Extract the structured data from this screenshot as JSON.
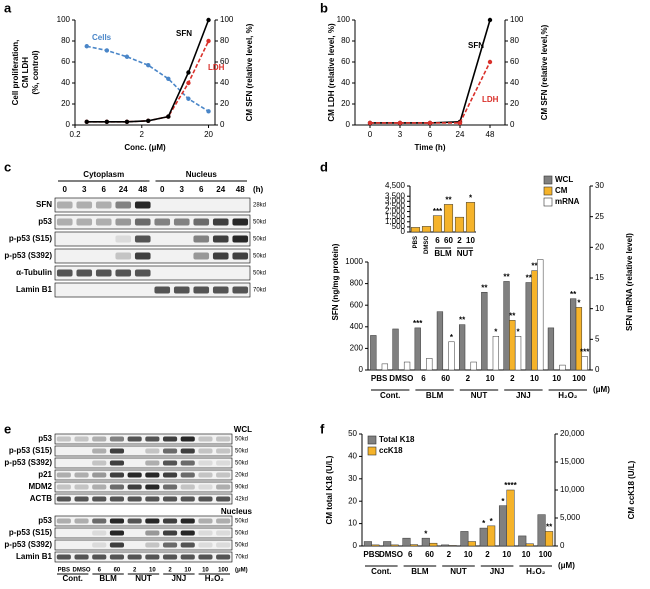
{
  "chart_data": [
    {
      "panel": "a",
      "type": "line",
      "x_label": "Conc. (μM)",
      "y_label": [
        "Cell proliferation,",
        "CM LDH",
        "(%, control)"
      ],
      "y2_label": "CM SFN (relative level, %)",
      "log_x": true,
      "xlim": [
        0.2,
        25
      ],
      "xticks": [
        0.2,
        2,
        20
      ],
      "ylim": [
        0,
        100
      ],
      "yticks": [
        0,
        20,
        40,
        60,
        80,
        100
      ],
      "y2lim": [
        0,
        100
      ],
      "y2ticks": [
        0,
        20,
        40,
        60,
        80,
        100
      ],
      "x": [
        0.3,
        0.6,
        1.2,
        2.5,
        5,
        10,
        20
      ],
      "series": [
        {
          "name": "Cells",
          "color": "#4a86c8",
          "dash": true,
          "values": [
            75,
            71,
            65,
            57,
            44,
            25,
            13
          ]
        },
        {
          "name": "LDH",
          "color": "#d9302a",
          "dash": true,
          "values": [
            3,
            3,
            3,
            4,
            8,
            40,
            80
          ]
        },
        {
          "name": "SFN",
          "color": "#000000",
          "axis": "y2",
          "values": [
            3,
            3,
            3,
            4,
            8,
            50,
            100
          ]
        }
      ]
    },
    {
      "panel": "b",
      "type": "line",
      "x_label": "Time (h)",
      "y_label": "CM LDH (relative level, %)",
      "y2_label": "CM SFN (relative level,%)",
      "categories": [
        0,
        3,
        6,
        24,
        48
      ],
      "ylim": [
        0,
        100
      ],
      "yticks": [
        0,
        20,
        40,
        60,
        80,
        100
      ],
      "y2lim": [
        0,
        100
      ],
      "y2ticks": [
        0,
        20,
        40,
        60,
        80,
        100
      ],
      "series": [
        {
          "name": "SFN",
          "color": "#000000",
          "axis": "y2",
          "values": [
            2,
            2,
            2,
            3,
            100
          ]
        },
        {
          "name": "LDH",
          "color": "#d9302a",
          "dash": true,
          "values": [
            2,
            2,
            2,
            2,
            60
          ]
        }
      ]
    },
    {
      "panel": "d",
      "type": "bar",
      "y_label": "SFN (ng/mg protein)",
      "y2_label": "SFN mRNA (relative level)",
      "unit": "(μM)",
      "categories": [
        "PBS",
        "DMSO",
        "6",
        "60",
        "2",
        "10",
        "2",
        "10",
        "10",
        "100"
      ],
      "groups": [
        "Cont.",
        "BLM",
        "NUT",
        "JNJ",
        "H₂O₂"
      ],
      "ylim": [
        0,
        1000
      ],
      "yticks": [
        0,
        200,
        400,
        600,
        800,
        1000
      ],
      "y2lim": [
        0,
        30
      ],
      "y2ticks": [
        0,
        5,
        10,
        15,
        20,
        25,
        30
      ],
      "series": [
        {
          "name": "WCL",
          "color": "#808080",
          "values": [
            320,
            380,
            390,
            540,
            420,
            720,
            820,
            810,
            390,
            660
          ],
          "significance": [
            null,
            null,
            "***",
            null,
            "**",
            "**",
            "**",
            "**",
            null,
            "**"
          ]
        },
        {
          "name": "CM",
          "color": "#f5b32a",
          "values": [
            null,
            null,
            null,
            null,
            null,
            null,
            460,
            920,
            null,
            580
          ],
          "significance": [
            null,
            null,
            null,
            null,
            null,
            null,
            "**",
            "**",
            null,
            "*"
          ]
        },
        {
          "name": "mRNA",
          "color": "#ffffff",
          "axis": "y2",
          "values": [
            1,
            1.3,
            1.9,
            4.6,
            1.3,
            5.5,
            5.5,
            18,
            0.8,
            2.2
          ],
          "significance": [
            null,
            null,
            null,
            "*",
            null,
            "*",
            "*",
            null,
            null,
            "***"
          ]
        }
      ]
    },
    {
      "type": "bar",
      "categories": [
        "PBS",
        "DMSO",
        "6",
        "60",
        "2",
        "10"
      ],
      "groups": [
        "BLM",
        "NUT"
      ],
      "color": "#f5b32a",
      "ylim": [
        0,
        4500
      ],
      "yticks": [
        0,
        500,
        {
          "value": 1000,
          "label": "1,000"
        },
        {
          "value": 1500,
          "label": "1,500"
        },
        {
          "value": 2000,
          "label": "2,000"
        },
        {
          "value": 2500,
          "label": "2,500"
        },
        {
          "value": 3000,
          "label": "3,000"
        },
        {
          "value": 3500,
          "label": "3,500"
        },
        {
          "value": 4500,
          "label": "4,500"
        }
      ],
      "values": [
        450,
        550,
        1600,
        2700,
        1450,
        2900
      ],
      "significance": [
        null,
        null,
        "***",
        "**",
        null,
        "*"
      ]
    },
    {
      "panel": "f",
      "type": "bar",
      "y_label": "CM total K18 (U/L)",
      "y2_label": "CM ccK18 (U/L)",
      "unit": "(μM)",
      "categories": [
        "PBS",
        "DMSO",
        "6",
        "60",
        "2",
        "10",
        "2",
        "10",
        "10",
        "100"
      ],
      "groups": [
        "Cont.",
        "BLM",
        "NUT",
        "JNJ",
        "H₂O₂"
      ],
      "ylim": [
        0,
        50
      ],
      "yticks": [
        0,
        10,
        20,
        30,
        40,
        50
      ],
      "y2lim": [
        0,
        20000
      ],
      "y2ticks": [
        0,
        {
          "value": 5000,
          "label": "5,000"
        },
        {
          "value": 10000,
          "label": "10,000"
        },
        {
          "value": 15000,
          "label": "15,000"
        },
        {
          "value": 20000,
          "label": "20,000"
        }
      ],
      "series": [
        {
          "name": "Total K18",
          "color": "#808080",
          "values": [
            2,
            2,
            3.5,
            3.5,
            0.5,
            6.5,
            8,
            18,
            4.5,
            14
          ],
          "significance": [
            null,
            null,
            null,
            "*",
            null,
            null,
            "*",
            "*",
            null,
            null
          ]
        },
        {
          "name": "ccK18",
          "color": "#f5b32a",
          "axis": "y2",
          "values": [
            200,
            200,
            250,
            500,
            100,
            800,
            3600,
            10000,
            400,
            2600
          ],
          "significance": [
            null,
            null,
            null,
            null,
            null,
            null,
            "*",
            "****",
            null,
            "**"
          ]
        }
      ]
    }
  ],
  "blots": [
    {
      "panel": "c",
      "headers": [
        "Cytoplasm",
        "Nucleus"
      ],
      "lanes": [
        "0",
        "3",
        "6",
        "24",
        "48",
        "0",
        "3",
        "6",
        "24",
        "48"
      ],
      "unit": "(h)",
      "rows": [
        {
          "label": "SFN",
          "size": "28kd"
        },
        {
          "label": "p53",
          "size": "50kd"
        },
        {
          "label": "p-p53 (S15)",
          "size": "50kd"
        },
        {
          "label": "p-p53 (S392)",
          "size": "50kd"
        },
        {
          "label": "α-Tubulin",
          "size": "50kd"
        },
        {
          "label": "Lamin B1",
          "size": "70kd"
        }
      ]
    },
    {
      "panel": "e",
      "lanes": [
        "PBS",
        "DMSO",
        "6",
        "60",
        "2",
        "10",
        "2",
        "10",
        "10",
        "100"
      ],
      "groups": [
        "Cont.",
        "BLM",
        "NUT",
        "JNJ",
        "H₂O₂"
      ],
      "unit": "(μM)",
      "sections": [
        {
          "title": "WCL",
          "rows": [
            {
              "label": "p53",
              "size": "50kd"
            },
            {
              "label": "p-p53 (S15)",
              "size": "50kd"
            },
            {
              "label": "p-p53 (S392)",
              "size": "50kd"
            },
            {
              "label": "p21",
              "size": "20kd"
            },
            {
              "label": "MDM2",
              "size": "90kd"
            },
            {
              "label": "ACTB",
              "size": "42kd"
            }
          ]
        },
        {
          "title": "Nucleus",
          "rows": [
            {
              "label": "p53",
              "size": "50kd"
            },
            {
              "label": "p-p53 (S15)",
              "size": "50kd"
            },
            {
              "label": "p-p53 (S392)",
              "size": "50kd"
            },
            {
              "label": "Lamin B1",
              "size": "70kd"
            }
          ]
        }
      ]
    }
  ]
}
